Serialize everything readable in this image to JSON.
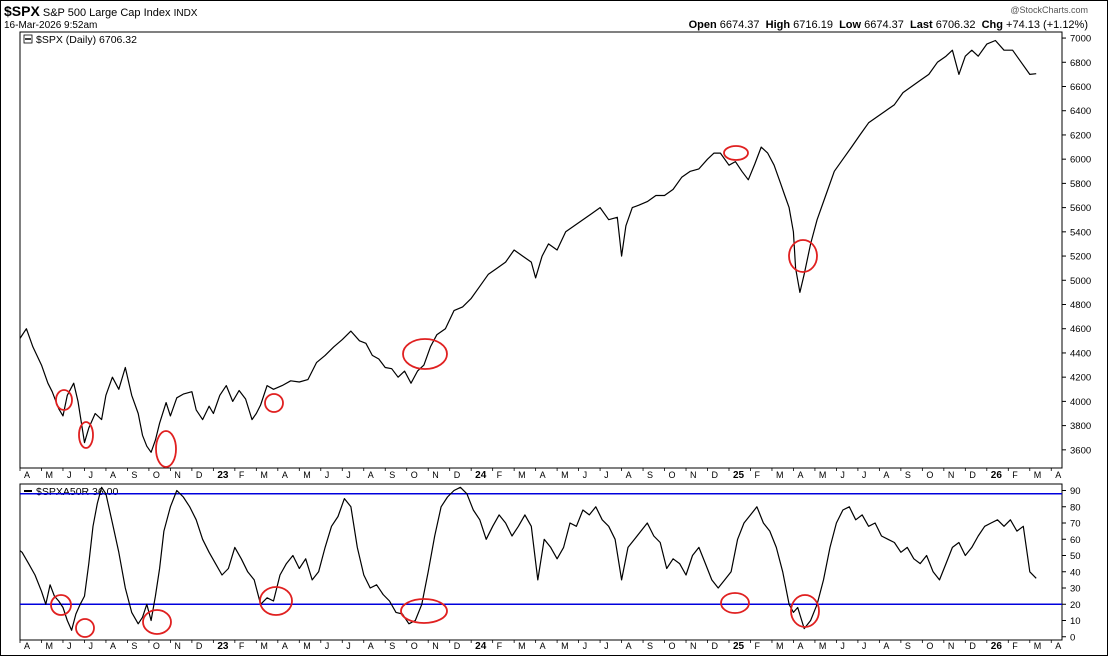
{
  "header": {
    "symbol": "$SPX",
    "name": "S&P 500 Large Cap Index",
    "exchange": "INDX",
    "datetime": "16-Mar-2026 9:52am",
    "watermark": "@StockCharts.com",
    "open_label": "Open",
    "open": "6674.37",
    "high_label": "High",
    "high": "6716.19",
    "low_label": "Low",
    "low": "6674.37",
    "last_label": "Last",
    "last": "6706.32",
    "chg_label": "Chg",
    "chg": "+74.13 (+1.12%)"
  },
  "colors": {
    "price": "#000000",
    "reference_line": "#0000dd",
    "circle": "#e02020"
  },
  "chart_data": [
    {
      "type": "line",
      "legend": "$SPX (Daily) 6706.32",
      "ylim": [
        3450,
        7050
      ],
      "yticks": [
        3600,
        3800,
        4000,
        4200,
        4400,
        4600,
        4800,
        5000,
        5200,
        5400,
        5600,
        5800,
        6000,
        6200,
        6400,
        6600,
        6800,
        7000
      ],
      "xlim": [
        0,
        48.5
      ],
      "x_ticks": [
        {
          "x": 0,
          "label": "A"
        },
        {
          "x": 1,
          "label": "M"
        },
        {
          "x": 2,
          "label": "J"
        },
        {
          "x": 3,
          "label": "J"
        },
        {
          "x": 4,
          "label": "A"
        },
        {
          "x": 5,
          "label": "S"
        },
        {
          "x": 6,
          "label": "O"
        },
        {
          "x": 7,
          "label": "N"
        },
        {
          "x": 8,
          "label": "D"
        },
        {
          "x": 9,
          "label": "23"
        },
        {
          "x": 10,
          "label": "F"
        },
        {
          "x": 11,
          "label": "M"
        },
        {
          "x": 12,
          "label": "A"
        },
        {
          "x": 13,
          "label": "M"
        },
        {
          "x": 14,
          "label": "J"
        },
        {
          "x": 15,
          "label": "J"
        },
        {
          "x": 16,
          "label": "A"
        },
        {
          "x": 17,
          "label": "S"
        },
        {
          "x": 18,
          "label": "O"
        },
        {
          "x": 19,
          "label": "N"
        },
        {
          "x": 20,
          "label": "D"
        },
        {
          "x": 21,
          "label": "24"
        },
        {
          "x": 22,
          "label": "F"
        },
        {
          "x": 23,
          "label": "M"
        },
        {
          "x": 24,
          "label": "A"
        },
        {
          "x": 25,
          "label": "M"
        },
        {
          "x": 26,
          "label": "J"
        },
        {
          "x": 27,
          "label": "J"
        },
        {
          "x": 28,
          "label": "A"
        },
        {
          "x": 29,
          "label": "S"
        },
        {
          "x": 30,
          "label": "O"
        },
        {
          "x": 31,
          "label": "N"
        },
        {
          "x": 32,
          "label": "D"
        },
        {
          "x": 33,
          "label": "25"
        },
        {
          "x": 34,
          "label": "F"
        },
        {
          "x": 35,
          "label": "M"
        },
        {
          "x": 36,
          "label": "A"
        },
        {
          "x": 37,
          "label": "M"
        },
        {
          "x": 38,
          "label": "J"
        },
        {
          "x": 39,
          "label": "J"
        },
        {
          "x": 40,
          "label": "A"
        },
        {
          "x": 41,
          "label": "S"
        },
        {
          "x": 42,
          "label": "O"
        },
        {
          "x": 43,
          "label": "N"
        },
        {
          "x": 44,
          "label": "D"
        },
        {
          "x": 45,
          "label": "26"
        },
        {
          "x": 46,
          "label": "F"
        },
        {
          "x": 47,
          "label": "M"
        },
        {
          "x": 48,
          "label": "A"
        }
      ],
      "x": [
        -0.5,
        0,
        0.3,
        0.6,
        1.0,
        1.3,
        1.5,
        1.8,
        2.0,
        2.2,
        2.5,
        2.7,
        3.0,
        3.2,
        3.5,
        3.8,
        4.0,
        4.3,
        4.6,
        4.9,
        5.2,
        5.5,
        5.7,
        5.9,
        6.1,
        6.3,
        6.5,
        6.8,
        7.0,
        7.3,
        7.6,
        8.0,
        8.2,
        8.5,
        8.8,
        9.0,
        9.3,
        9.6,
        9.9,
        10.2,
        10.5,
        10.8,
        11.0,
        11.2,
        11.5,
        11.8,
        12.2,
        12.6,
        13.0,
        13.4,
        13.8,
        14.2,
        14.6,
        15.0,
        15.4,
        15.8,
        16.1,
        16.4,
        16.7,
        17.0,
        17.3,
        17.6,
        17.9,
        18.2,
        18.5,
        18.8,
        19.1,
        19.4,
        19.8,
        20.2,
        20.6,
        21.0,
        21.4,
        21.8,
        22.2,
        22.6,
        23.0,
        23.4,
        23.8,
        24.0,
        24.3,
        24.6,
        25.0,
        25.4,
        25.8,
        26.2,
        26.6,
        27.0,
        27.4,
        27.8,
        28.0,
        28.2,
        28.5,
        28.8,
        29.2,
        29.6,
        30.0,
        30.4,
        30.8,
        31.2,
        31.6,
        32.0,
        32.3,
        32.6,
        33.0,
        33.3,
        33.6,
        33.9,
        34.2,
        34.5,
        34.8,
        35.1,
        35.4,
        35.6,
        35.8,
        36.0,
        36.1,
        36.3,
        36.5,
        36.8,
        37.1,
        37.5,
        37.9,
        38.3,
        38.7,
        39.1,
        39.5,
        39.9,
        40.3,
        40.7,
        41.1,
        41.5,
        41.9,
        42.3,
        42.7,
        43.1,
        43.4,
        43.7,
        44.0,
        44.3,
        44.6,
        45.0,
        45.4,
        45.8,
        46.2,
        46.6,
        47.0,
        47.3
      ],
      "y": [
        4380,
        4520,
        4600,
        4450,
        4300,
        4150,
        4080,
        3940,
        3880,
        4050,
        4150,
        4000,
        3660,
        3780,
        3900,
        3850,
        4050,
        4200,
        4100,
        4280,
        4050,
        3900,
        3720,
        3630,
        3580,
        3680,
        3820,
        3990,
        3880,
        4030,
        4060,
        4080,
        3930,
        3850,
        3960,
        3900,
        4050,
        4130,
        4000,
        4090,
        4020,
        3850,
        3900,
        3970,
        4130,
        4100,
        4130,
        4170,
        4160,
        4180,
        4320,
        4380,
        4450,
        4510,
        4580,
        4500,
        4480,
        4380,
        4350,
        4280,
        4270,
        4200,
        4250,
        4150,
        4250,
        4300,
        4450,
        4550,
        4600,
        4750,
        4780,
        4850,
        4950,
        5050,
        5100,
        5150,
        5250,
        5200,
        5150,
        5020,
        5200,
        5300,
        5250,
        5400,
        5450,
        5500,
        5550,
        5600,
        5500,
        5520,
        5200,
        5450,
        5600,
        5620,
        5650,
        5700,
        5700,
        5750,
        5850,
        5900,
        5920,
        6000,
        6050,
        6050,
        5950,
        5980,
        5900,
        5830,
        5960,
        6100,
        6050,
        5950,
        5800,
        5700,
        5600,
        5400,
        5100,
        4900,
        5050,
        5300,
        5500,
        5700,
        5900,
        6000,
        6100,
        6200,
        6300,
        6350,
        6400,
        6450,
        6550,
        6600,
        6650,
        6700,
        6800,
        6850,
        6900,
        6700,
        6850,
        6900,
        6850,
        6950,
        6980,
        6900,
        6900,
        6800,
        6700,
        6706
      ]
    },
    {
      "type": "line",
      "legend": "$SPXA50R 36.00",
      "ylim": [
        -2,
        94
      ],
      "yticks": [
        0,
        10,
        20,
        30,
        40,
        50,
        60,
        70,
        80,
        90
      ],
      "reference_lines": [
        88,
        20
      ],
      "xlim": [
        0,
        48.5
      ],
      "x": [
        -0.5,
        -0.2,
        0.1,
        0.4,
        0.7,
        1.0,
        1.2,
        1.4,
        1.6,
        1.8,
        2.0,
        2.2,
        2.4,
        2.6,
        2.8,
        3.0,
        3.2,
        3.4,
        3.6,
        3.8,
        4.0,
        4.3,
        4.6,
        4.9,
        5.2,
        5.5,
        5.7,
        5.9,
        6.1,
        6.3,
        6.5,
        6.7,
        7.0,
        7.3,
        7.6,
        7.9,
        8.2,
        8.5,
        8.8,
        9.1,
        9.4,
        9.7,
        10.0,
        10.3,
        10.6,
        10.9,
        11.2,
        11.5,
        11.8,
        12.1,
        12.4,
        12.7,
        13.0,
        13.3,
        13.6,
        13.9,
        14.2,
        14.5,
        14.8,
        15.1,
        15.4,
        15.7,
        16.0,
        16.3,
        16.6,
        16.9,
        17.2,
        17.5,
        17.8,
        18.1,
        18.4,
        18.7,
        19.0,
        19.3,
        19.6,
        19.9,
        20.2,
        20.5,
        20.8,
        21.1,
        21.4,
        21.7,
        22.0,
        22.3,
        22.6,
        22.9,
        23.2,
        23.5,
        23.8,
        24.1,
        24.4,
        24.7,
        25.0,
        25.3,
        25.6,
        25.9,
        26.2,
        26.5,
        26.8,
        27.1,
        27.4,
        27.7,
        28.0,
        28.3,
        28.6,
        28.9,
        29.2,
        29.5,
        29.8,
        30.1,
        30.4,
        30.7,
        31.0,
        31.3,
        31.6,
        31.9,
        32.2,
        32.5,
        32.8,
        33.1,
        33.4,
        33.7,
        34.0,
        34.3,
        34.6,
        34.9,
        35.2,
        35.5,
        35.8,
        36.0,
        36.2,
        36.5,
        36.8,
        37.1,
        37.4,
        37.7,
        38.0,
        38.3,
        38.6,
        38.9,
        39.2,
        39.5,
        39.8,
        40.1,
        40.4,
        40.7,
        41.0,
        41.3,
        41.6,
        41.9,
        42.2,
        42.5,
        42.8,
        43.1,
        43.4,
        43.7,
        44.0,
        44.3,
        44.6,
        44.9,
        45.2,
        45.5,
        45.8,
        46.1,
        46.4,
        46.7,
        47.0,
        47.3
      ],
      "y": [
        60,
        55,
        52,
        45,
        38,
        28,
        20,
        32,
        25,
        22,
        18,
        10,
        4,
        14,
        20,
        25,
        45,
        68,
        82,
        92,
        88,
        70,
        52,
        30,
        15,
        8,
        12,
        20,
        10,
        25,
        42,
        65,
        80,
        90,
        86,
        80,
        72,
        60,
        52,
        45,
        38,
        42,
        55,
        48,
        40,
        35,
        20,
        24,
        22,
        38,
        45,
        50,
        42,
        48,
        35,
        40,
        55,
        68,
        74,
        85,
        80,
        55,
        38,
        30,
        32,
        26,
        22,
        15,
        14,
        8,
        10,
        20,
        40,
        62,
        80,
        86,
        90,
        92,
        88,
        78,
        72,
        60,
        68,
        75,
        70,
        62,
        68,
        75,
        68,
        35,
        60,
        55,
        48,
        55,
        70,
        68,
        78,
        75,
        80,
        72,
        68,
        60,
        35,
        55,
        60,
        65,
        70,
        62,
        58,
        42,
        48,
        45,
        38,
        50,
        55,
        45,
        35,
        30,
        35,
        40,
        60,
        70,
        75,
        80,
        70,
        65,
        55,
        40,
        20,
        15,
        18,
        5,
        10,
        20,
        35,
        55,
        70,
        78,
        80,
        72,
        75,
        68,
        70,
        62,
        60,
        58,
        52,
        55,
        48,
        45,
        50,
        40,
        35,
        45,
        55,
        58,
        50,
        55,
        62,
        68,
        70,
        72,
        68,
        72,
        65,
        68,
        40,
        36
      ]
    }
  ]
}
